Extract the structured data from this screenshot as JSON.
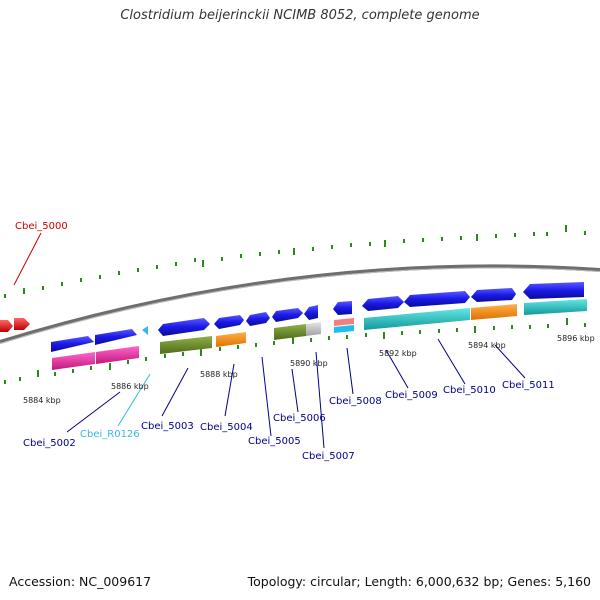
{
  "title": "Clostridium beijerinckii NCIMB 8052, complete genome",
  "accession": "Accession: NC_009617",
  "summary": "Topology: circular; Length: 6,000,632 bp; Genes: 5,160",
  "scale_labels": [
    "5884 kbp",
    "5886 kbp",
    "5888 kbp",
    "5890 kbp",
    "5892 kbp",
    "5894 kbp",
    "5896 kbp"
  ],
  "gene_labels": [
    {
      "text": "Cbei_5000",
      "color": "#cc0000"
    },
    {
      "text": "Cbei_5002",
      "color": "#00008b"
    },
    {
      "text": "Cbei_R0126",
      "color": "#33bbdd"
    },
    {
      "text": "Cbei_5003",
      "color": "#00008b"
    },
    {
      "text": "Cbei_5004",
      "color": "#00008b"
    },
    {
      "text": "Cbei_5005",
      "color": "#00008b"
    },
    {
      "text": "Cbei_5006",
      "color": "#00008b"
    },
    {
      "text": "Cbei_5007",
      "color": "#00008b"
    },
    {
      "text": "Cbei_5008",
      "color": "#00008b"
    },
    {
      "text": "Cbei_5009",
      "color": "#00008b"
    },
    {
      "text": "Cbei_5010",
      "color": "#00008b"
    },
    {
      "text": "Cbei_5011",
      "color": "#00008b"
    }
  ],
  "colors": {
    "backbone": "#7a7a7a",
    "tick": "#2a8a1a",
    "gene_forward": "#1a1ae6",
    "gene_reverse_red": "#ee1111",
    "cog_magenta": "#ee2299",
    "cog_olive": "#6b8e23",
    "cog_orange": "#ff8c00",
    "cog_cyan": "#22cccc",
    "cog_grey": "#c8c8c8",
    "cog_salmon": "#f08080",
    "rna": "#33bbdd"
  }
}
